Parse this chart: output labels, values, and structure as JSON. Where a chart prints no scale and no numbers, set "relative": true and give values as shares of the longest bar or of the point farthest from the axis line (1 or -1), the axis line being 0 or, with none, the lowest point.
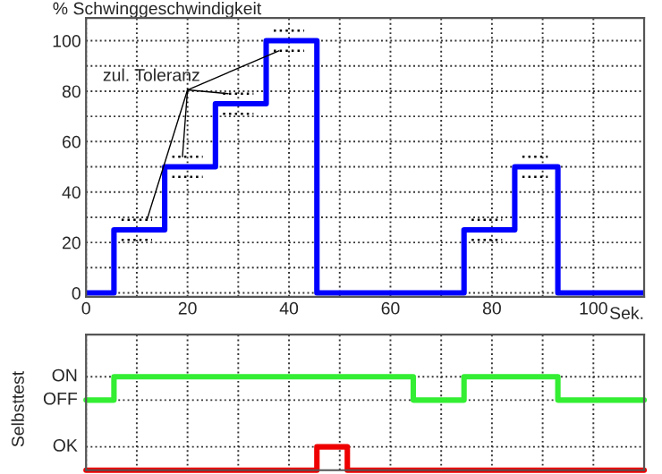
{
  "chart_data": [
    {
      "type": "step",
      "ylabel": "% Schwinggeschwindigkeit",
      "xlabel": "Sek.",
      "annotations": [
        {
          "text": "zul. Toleranz",
          "x": 28,
          "y": 79
        }
      ],
      "xlim": [
        0,
        110
      ],
      "xticks": [
        0,
        {
          "value": 10,
          "label": null
        },
        20,
        {
          "value": 30,
          "label": null
        },
        40,
        {
          "value": 50,
          "label": null
        },
        60,
        {
          "value": 70,
          "label": null
        },
        80,
        {
          "value": 90,
          "label": null
        },
        100
      ],
      "ylim": [
        -1.5,
        109
      ],
      "yticks": [
        0,
        {
          "value": 10,
          "label": null
        },
        20,
        {
          "value": 30,
          "label": null
        },
        40,
        {
          "value": 50,
          "label": null
        },
        60,
        {
          "value": 70,
          "label": null
        },
        80,
        {
          "value": 90,
          "label": null
        },
        100
      ],
      "grid": true,
      "line_style": "solid",
      "series": [
        {
          "color": "#0000ff",
          "x": [
            0,
            5.5,
            15.5,
            25.5,
            35.5,
            45.5,
            74.5,
            84.5,
            93,
            110
          ],
          "values": [
            0,
            25,
            50,
            75,
            100,
            0,
            25,
            50,
            0,
            0
          ]
        },
        {
          "type": "line",
          "line_style": "dotted",
          "color": "#000000",
          "x": [
            7,
            13
          ],
          "values": [
            29,
            29
          ]
        },
        {
          "type": "line",
          "line_style": "dotted",
          "color": "#000000",
          "x": [
            7,
            13
          ],
          "values": [
            21,
            21
          ]
        },
        {
          "type": "line",
          "line_style": "dotted",
          "color": "#000000",
          "x": [
            17,
            23
          ],
          "values": [
            54,
            54
          ]
        },
        {
          "type": "line",
          "line_style": "dotted",
          "color": "#000000",
          "x": [
            17,
            23
          ],
          "values": [
            46,
            46
          ]
        },
        {
          "type": "line",
          "line_style": "dotted",
          "color": "#000000",
          "x": [
            27,
            33
          ],
          "values": [
            79,
            79
          ]
        },
        {
          "type": "line",
          "line_style": "dotted",
          "color": "#000000",
          "x": [
            27,
            33
          ],
          "values": [
            71,
            71
          ]
        },
        {
          "type": "line",
          "line_style": "dotted",
          "color": "#000000",
          "x": [
            37,
            43
          ],
          "values": [
            104,
            104
          ]
        },
        {
          "type": "line",
          "line_style": "dotted",
          "color": "#000000",
          "x": [
            37,
            43
          ],
          "values": [
            96,
            96
          ]
        },
        {
          "type": "line",
          "line_style": "dotted",
          "color": "#000000",
          "x": [
            76,
            82
          ],
          "values": [
            29,
            29
          ]
        },
        {
          "type": "line",
          "line_style": "dotted",
          "color": "#000000",
          "x": [
            76,
            82
          ],
          "values": [
            21,
            21
          ]
        },
        {
          "type": "line",
          "line_style": "dotted",
          "color": "#000000",
          "x": [
            86,
            91
          ],
          "values": [
            54,
            54
          ]
        },
        {
          "type": "line",
          "line_style": "dotted",
          "color": "#000000",
          "x": [
            86,
            91
          ],
          "values": [
            46,
            46
          ]
        }
      ]
    },
    {
      "type": "step",
      "ylabel": "Selbsttest",
      "tick_labels": false,
      "relative": true,
      "annotations": [
        "ON",
        "OFF",
        "OK"
      ],
      "xlim": [
        0,
        110
      ],
      "xticks": [
        0,
        {
          "value": 10,
          "label": null
        },
        20,
        {
          "value": 30,
          "label": null
        },
        40,
        {
          "value": 50,
          "label": null
        },
        60,
        {
          "value": 70,
          "label": null
        },
        80,
        {
          "value": 90,
          "label": null
        },
        100
      ],
      "grid": true,
      "line_style": "solid",
      "series": [
        {
          "color": "#33ee33",
          "x": [
            0,
            5.5,
            64.5,
            74.5,
            93,
            110
          ],
          "values": [
            0.75,
            1,
            0.75,
            1,
            0.75,
            0.75
          ]
        },
        {
          "color": "#ee0000",
          "x": [
            0,
            45.5,
            51.5,
            110
          ],
          "values": [
            0,
            0.25,
            0,
            0
          ]
        }
      ]
    }
  ]
}
